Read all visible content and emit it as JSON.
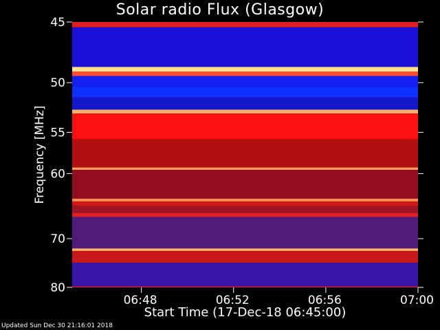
{
  "chart_data": {
    "type": "heatmap",
    "title": "Solar radio Flux (Glasgow)",
    "xlabel": "Start Time (17-Dec-18 06:45:00)",
    "ylabel": "Frequency [MHz]",
    "x_ticks": [
      "06:48",
      "06:52",
      "06:56",
      "07:00"
    ],
    "x_tick_minutes": [
      48,
      52,
      56,
      60
    ],
    "xlim_minutes": [
      45,
      60
    ],
    "y_ticks": [
      45,
      50,
      55,
      60,
      70,
      80
    ],
    "ylim": [
      45,
      80
    ],
    "y_scale": "reciprocal",
    "grid": false,
    "bands": [
      {
        "from": 45.0,
        "to": 45.4,
        "color": "#e02020"
      },
      {
        "from": 45.4,
        "to": 48.6,
        "color": "#1a10d8"
      },
      {
        "from": 48.6,
        "to": 49.0,
        "color": "#ffe090"
      },
      {
        "from": 49.0,
        "to": 49.4,
        "color": "#ff5030"
      },
      {
        "from": 49.4,
        "to": 50.4,
        "color": "#1420f0"
      },
      {
        "from": 50.4,
        "to": 51.4,
        "color": "#1030ff"
      },
      {
        "from": 51.4,
        "to": 52.6,
        "color": "#1418c8"
      },
      {
        "from": 52.6,
        "to": 53.0,
        "color": "#ffb070"
      },
      {
        "from": 53.0,
        "to": 55.8,
        "color": "#ff1010"
      },
      {
        "from": 55.8,
        "to": 59.2,
        "color": "#b01010"
      },
      {
        "from": 59.2,
        "to": 59.5,
        "color": "#ffa060"
      },
      {
        "from": 59.5,
        "to": 63.5,
        "color": "#900e20"
      },
      {
        "from": 63.5,
        "to": 63.9,
        "color": "#ff9050"
      },
      {
        "from": 63.9,
        "to": 64.6,
        "color": "#d01818"
      },
      {
        "from": 64.6,
        "to": 65.7,
        "color": "#a01428"
      },
      {
        "from": 65.7,
        "to": 66.3,
        "color": "#e02020"
      },
      {
        "from": 66.3,
        "to": 71.8,
        "color": "#501a78"
      },
      {
        "from": 71.8,
        "to": 72.3,
        "color": "#ffb070"
      },
      {
        "from": 72.3,
        "to": 74.6,
        "color": "#c81818"
      },
      {
        "from": 74.6,
        "to": 79.8,
        "color": "#3818a8"
      },
      {
        "from": 79.8,
        "to": 80.0,
        "color": "#ff2020"
      }
    ]
  },
  "footer": "Updated Sun Dec 30 21:16:01 2018"
}
